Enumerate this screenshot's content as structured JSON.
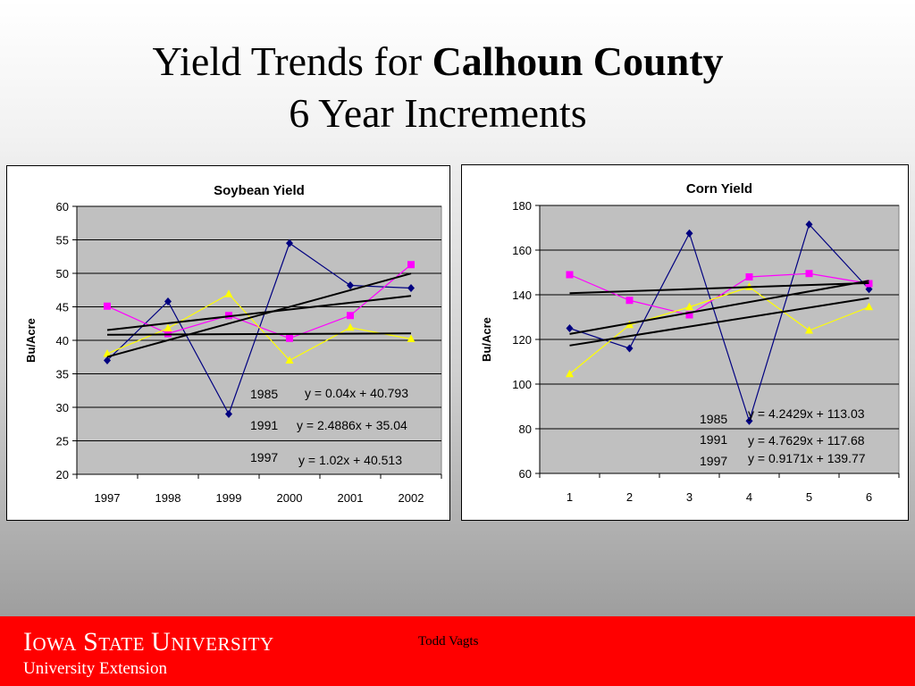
{
  "slide": {
    "title_prefix": "Yield Trends for ",
    "title_bold": "Calhoun County",
    "subtitle": "6 Year Increments"
  },
  "footer": {
    "university": "Iowa State University",
    "extension": "University Extension",
    "author": "Todd Vagts"
  },
  "colors": {
    "plot_bg": "#c0c0c0",
    "footer_bg": "#ff0000",
    "series_1985": "#000080",
    "series_1991": "#ff00ff",
    "series_1997": "#ffff00",
    "trendline": "#000000"
  },
  "chart_data": [
    {
      "type": "line",
      "title": "Soybean Yield",
      "xlabel": "",
      "ylabel": "Bu/Acre",
      "categories": [
        "1997",
        "1998",
        "1999",
        "2000",
        "2001",
        "2002"
      ],
      "ylim": [
        20,
        60
      ],
      "yticks": [
        20,
        25,
        30,
        35,
        40,
        45,
        50,
        55,
        60
      ],
      "grid": true,
      "legend": "none",
      "series": [
        {
          "name": "1985",
          "marker": "diamond",
          "color": "#000080",
          "values": [
            37.0,
            45.8,
            29.0,
            54.5,
            48.2,
            47.8
          ]
        },
        {
          "name": "1991",
          "marker": "square",
          "color": "#ff00ff",
          "values": [
            45.1,
            41.0,
            43.7,
            40.3,
            43.7,
            51.3
          ]
        },
        {
          "name": "1997",
          "marker": "triangle",
          "color": "#ffff00",
          "values": [
            38.0,
            41.8,
            46.9,
            37.0,
            41.9,
            40.2
          ]
        }
      ],
      "trendlines": [
        {
          "label": "1985",
          "equation": "y = 0.04x + 40.793",
          "slope": 0.04,
          "intercept": 40.793
        },
        {
          "label": "1991",
          "equation": "y = 2.4886x + 35.04",
          "slope": 2.4886,
          "intercept": 35.04
        },
        {
          "label": "1997",
          "equation": "y = 1.02x + 40.513",
          "slope": 1.02,
          "intercept": 40.513
        }
      ]
    },
    {
      "type": "line",
      "title": "Corn Yield",
      "xlabel": "",
      "ylabel": "Bu/Acre",
      "categories": [
        "1",
        "2",
        "3",
        "4",
        "5",
        "6"
      ],
      "ylim": [
        60,
        180
      ],
      "yticks": [
        60,
        80,
        100,
        120,
        140,
        160,
        180
      ],
      "grid": true,
      "legend": "none",
      "series": [
        {
          "name": "1985",
          "marker": "diamond",
          "color": "#000080",
          "values": [
            125.0,
            116.0,
            167.5,
            83.5,
            171.5,
            142.5
          ]
        },
        {
          "name": "1991",
          "marker": "square",
          "color": "#ff00ff",
          "values": [
            149.0,
            137.5,
            131.0,
            148.0,
            149.5,
            145.0
          ]
        },
        {
          "name": "1997",
          "marker": "triangle",
          "color": "#ffff00",
          "values": [
            104.5,
            126.5,
            134.5,
            143.5,
            124.0,
            134.5
          ]
        }
      ],
      "trendlines": [
        {
          "label": "1985",
          "equation": "y = 4.2429x + 113.03",
          "slope": 4.2429,
          "intercept": 113.03
        },
        {
          "label": "1991",
          "equation": "y = 4.7629x + 117.68",
          "slope": 4.7629,
          "intercept": 117.68
        },
        {
          "label": "1997",
          "equation": "y = 0.9171x + 139.77",
          "slope": 0.9171,
          "intercept": 139.77
        }
      ]
    }
  ]
}
